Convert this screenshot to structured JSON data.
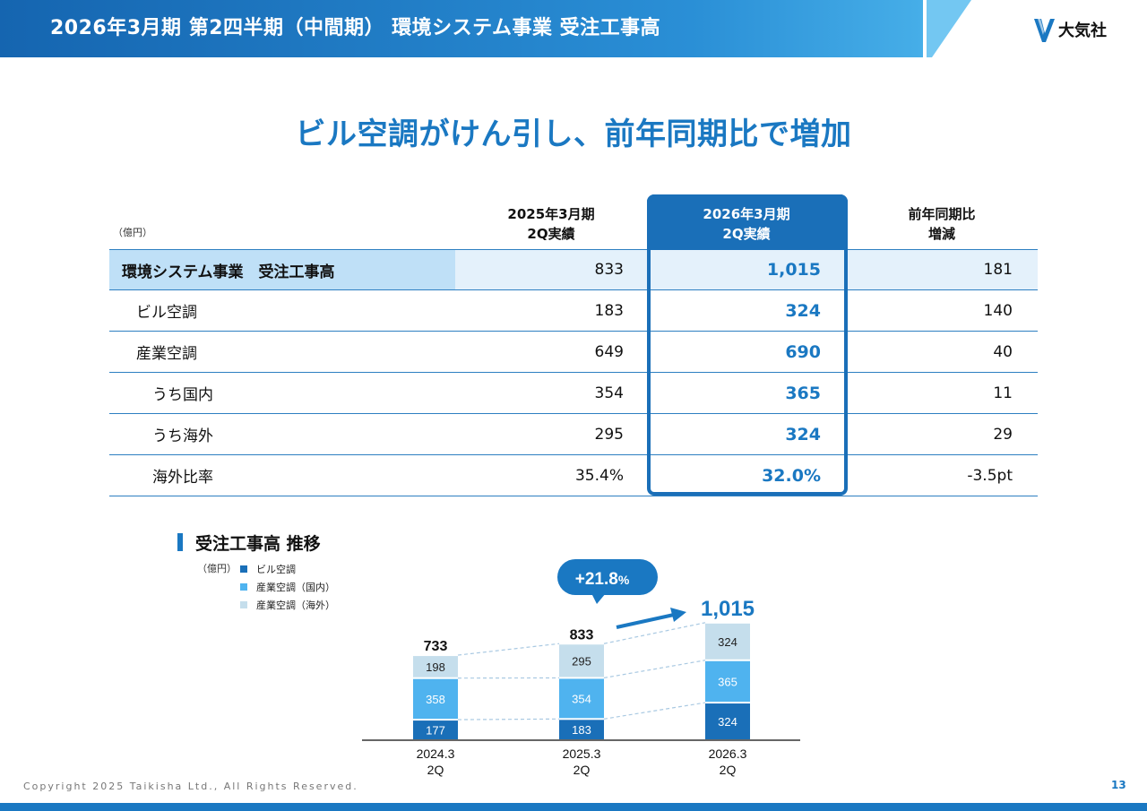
{
  "header": {
    "title": "2026年3月期 第2四半期（中間期） 環境システム事業 受注工事高",
    "logo_text": "大気社"
  },
  "headline": "ビル空調がけん引し、前年同期比で増加",
  "table": {
    "unit": "（億円）",
    "columns": {
      "prev": [
        "2025年3月期",
        "2Q実績"
      ],
      "cur": [
        "2026年3月期",
        "2Q実績"
      ],
      "diff": [
        "前年同期比",
        "増減"
      ]
    },
    "rows": [
      {
        "label": "環境システム事業　受注工事高",
        "prev": "833",
        "cur": "1,015",
        "diff": "181"
      },
      {
        "label": "ビル空調",
        "prev": "183",
        "cur": "324",
        "diff": "140"
      },
      {
        "label": "産業空調",
        "prev": "649",
        "cur": "690",
        "diff": "40"
      },
      {
        "label": "うち国内",
        "prev": "354",
        "cur": "365",
        "diff": "11"
      },
      {
        "label": "うち海外",
        "prev": "295",
        "cur": "324",
        "diff": "29"
      },
      {
        "label": "海外比率",
        "prev": "35.4%",
        "cur": "32.0%",
        "diff": "-3.5pt"
      }
    ]
  },
  "chart_section": {
    "title": "受注工事高 推移",
    "unit": "（億円）",
    "growth_label": "+21.8",
    "growth_pct": "%"
  },
  "chart_data": {
    "type": "bar",
    "stacked": true,
    "title": "受注工事高 推移",
    "ylabel": "億円",
    "categories": [
      "2024.3\n2Q",
      "2025.3\n2Q",
      "2026.3\n2Q"
    ],
    "category_lines": [
      [
        "2024.3",
        "2Q"
      ],
      [
        "2025.3",
        "2Q"
      ],
      [
        "2026.3",
        "2Q"
      ]
    ],
    "series": [
      {
        "name": "ビル空調",
        "values": [
          177,
          183,
          324
        ],
        "color": "#1a6fb8",
        "label_color": "#ffffff"
      },
      {
        "name": "産業空調（国内）",
        "values": [
          358,
          354,
          365
        ],
        "color": "#4fb3ef",
        "label_color": "#ffffff"
      },
      {
        "name": "産業空調（海外）",
        "values": [
          198,
          295,
          324
        ],
        "color": "#c5deec",
        "label_color": "#222222"
      }
    ],
    "totals": [
      "733",
      "833",
      "1,015"
    ],
    "growth_annotation": "+21.8%"
  },
  "footer": {
    "copyright": "Copyright  2025 Taikisha Ltd., All Rights Reserved.",
    "page_number": "13"
  },
  "colors": {
    "brand_blue": "#1a78c2",
    "dark_blue": "#1a6fb8",
    "light_blue": "#4fb3ef",
    "pale_blue": "#c5deec",
    "row_highlight": "#bfe0f7"
  }
}
